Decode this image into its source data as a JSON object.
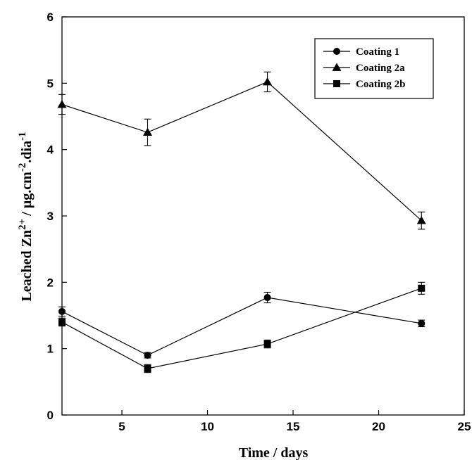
{
  "chart_data": {
    "type": "line",
    "title": "",
    "xlabel": "Time / days",
    "ylabel": {
      "prefix": "Leached Zn",
      "sup1": "2+",
      "mid": "/ µg.cm",
      "sup2": "-2",
      "mid2": ".dia",
      "sup3": "-1"
    },
    "xlim": [
      1.5,
      25
    ],
    "ylim": [
      0,
      6
    ],
    "xticks": [
      5,
      10,
      15,
      20,
      25
    ],
    "yticks": [
      0,
      1,
      2,
      3,
      4,
      5,
      6
    ],
    "grid": false,
    "legend_position": "top-right",
    "series": [
      {
        "name": "Coating 1",
        "marker": "circle",
        "color": "#000000",
        "x": [
          1.5,
          6.5,
          13.5,
          22.5
        ],
        "y": [
          1.56,
          0.9,
          1.77,
          1.38
        ],
        "err": [
          0.07,
          0.04,
          0.08,
          0.05
        ]
      },
      {
        "name": "Coating 2a",
        "marker": "triangle",
        "color": "#000000",
        "x": [
          1.5,
          6.5,
          13.5,
          22.5
        ],
        "y": [
          4.68,
          4.26,
          5.02,
          2.93
        ],
        "err": [
          0.15,
          0.2,
          0.15,
          0.13
        ]
      },
      {
        "name": "Coating 2b",
        "marker": "square",
        "color": "#000000",
        "x": [
          1.5,
          6.5,
          13.5,
          22.5
        ],
        "y": [
          1.4,
          0.7,
          1.07,
          1.91
        ],
        "err": [
          0.06,
          0.06,
          0.06,
          0.09
        ]
      }
    ]
  }
}
